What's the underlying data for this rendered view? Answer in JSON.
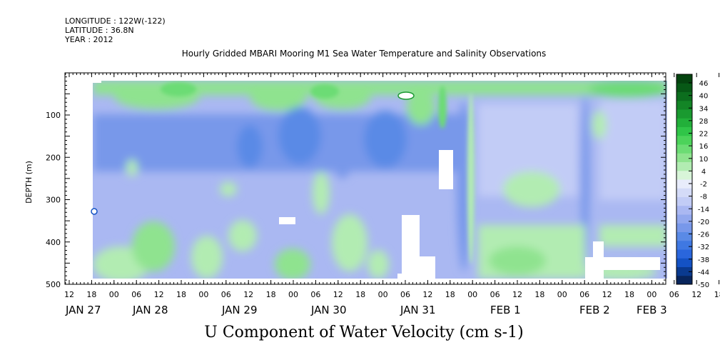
{
  "header": {
    "longitude": "LONGITUDE : 122W(-122)",
    "latitude": "LATITUDE : 36.8N",
    "year": "YEAR : 2012"
  },
  "chart_data": {
    "type": "heatmap",
    "title": "Hourly Gridded MBARI Mooring M1 Sea Water Temperature and Salinity Observations",
    "xlabel": "",
    "ylabel": "DEPTH (m)",
    "bottom_label": "U Component of Water Velocity (cm s-1)",
    "x_hour_ticks": [
      "12",
      "18",
      "00",
      "06",
      "12",
      "18",
      "00",
      "06",
      "12",
      "18",
      "00",
      "06",
      "12",
      "18",
      "00",
      "06",
      "12",
      "18",
      "00",
      "06",
      "12",
      "18",
      "00",
      "06",
      "12",
      "18",
      "00",
      "06",
      "12",
      "18",
      "00"
    ],
    "x_date_labels": [
      "JAN 27",
      "JAN 28",
      "JAN 29",
      "JAN 30",
      "JAN 31",
      "FEB  1",
      "FEB  2",
      "FEB  3"
    ],
    "y_ticks": [
      100,
      200,
      300,
      400,
      500
    ],
    "ylim": [
      500,
      0
    ],
    "colorbar": {
      "labels": [
        "46",
        "40",
        "34",
        "28",
        "22",
        "16",
        "10",
        "4",
        "-2",
        "-8",
        "-14",
        "-20",
        "-26",
        "-32",
        "-38",
        "-44",
        "-50"
      ],
      "range": [
        -50,
        49
      ],
      "colors": [
        "#08255c",
        "#0a3a8f",
        "#1452c4",
        "#2a66dc",
        "#3f78e2",
        "#5a8ae6",
        "#7898ea",
        "#92a8ee",
        "#aab8f2",
        "#c2ccf6",
        "#d4dbf8",
        "#e8ecfb",
        "#d8f5d8",
        "#b2ecb2",
        "#8fe38f",
        "#6cdc74",
        "#4cd35a",
        "#30c548",
        "#22b03a",
        "#1a9a30",
        "#138526",
        "#0c6e1e",
        "#075816",
        "#04430f"
      ]
    },
    "regions_text": "U velocity mostly between -20 and 10 cm/s; negative (blue) dominant at mid depths, positive (green) near surface and deep layers"
  }
}
